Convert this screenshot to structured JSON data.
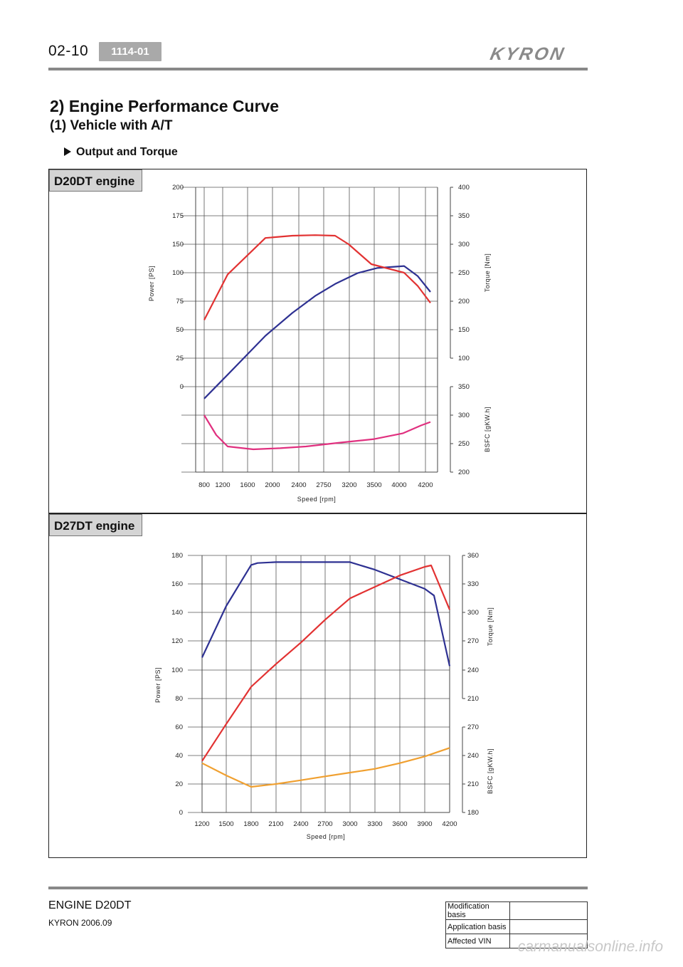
{
  "header": {
    "page_number": "02-10",
    "section_code": "1114-01",
    "brand_logo": "KYRON"
  },
  "title": "2) Engine Performance Curve",
  "subtitle": "(1) Vehicle with A/T",
  "bullet": "Output and Torque",
  "colors": {
    "power": "#2e3192",
    "torque": "#e23232",
    "bsfc_d20": "#e0307f",
    "bsfc_d27": "#f0a030"
  },
  "chart_data": [
    {
      "type": "line",
      "panel_label": "D20DT engine",
      "xlabel": "Speed [rpm]",
      "x_ticks": [
        "800",
        "1200",
        "1600",
        "2000",
        "2400",
        "2750",
        "3200",
        "3500",
        "4000",
        "4200"
      ],
      "left_axis": {
        "label": "Power [PS]",
        "ticks": [
          "200",
          "175",
          "150",
          "100",
          "75",
          "50",
          "25",
          "0"
        ]
      },
      "right_upper_axis": {
        "label": "Torque [Nm]",
        "ticks": [
          "400",
          "350",
          "300",
          "250",
          "200",
          "150",
          "100"
        ]
      },
      "right_lower_axis": {
        "label": "BSFC [gKW.h]",
        "ticks": [
          "350",
          "300",
          "250",
          "200"
        ]
      },
      "grid": true,
      "series": [
        {
          "name": "",
          "axis": "power",
          "color_key": "power",
          "x": [
            800,
            1200,
            1600,
            2000,
            2400,
            2750,
            3200,
            3500,
            4000,
            4200,
            4300
          ],
          "y": [
            -12,
            12,
            51,
            74,
            91,
            103,
            114,
            119,
            121,
            111,
            95
          ]
        },
        {
          "name": "",
          "axis": "torque",
          "color_key": "torque",
          "x": [
            800,
            1200,
            1600,
            2000,
            2400,
            2750,
            3200,
            3500,
            4000,
            4200,
            4300
          ],
          "y": [
            167,
            247,
            311,
            315,
            316,
            315,
            300,
            265,
            250,
            227,
            197
          ]
        },
        {
          "name": "",
          "axis": "bsfc",
          "color_key": "bsfc_d20",
          "x": [
            800,
            1200,
            1600,
            2000,
            2400,
            2750,
            3200,
            3500,
            4000,
            4200,
            4300
          ],
          "y": [
            300,
            265,
            245,
            240,
            242,
            245,
            252,
            258,
            268,
            282,
            288
          ]
        }
      ]
    },
    {
      "type": "line",
      "panel_label": "D27DT engine",
      "xlabel": "Speed [rpm]",
      "x_ticks": [
        "1200",
        "1500",
        "1800",
        "2100",
        "2400",
        "2700",
        "3000",
        "3300",
        "3600",
        "3900",
        "4200"
      ],
      "left_axis": {
        "label": "Power [PS]",
        "ticks": [
          "180",
          "160",
          "140",
          "120",
          "100",
          "80",
          "60",
          "40",
          "20",
          "0"
        ]
      },
      "right_upper_axis": {
        "label": "Torque [Nm]",
        "ticks": [
          "360",
          "330",
          "300",
          "270",
          "240",
          "210"
        ]
      },
      "right_lower_axis": {
        "label": "BSFC [gKW.h]",
        "ticks": [
          "270",
          "240",
          "210",
          "180"
        ]
      },
      "grid": true,
      "series": [
        {
          "name": "",
          "axis": "torque",
          "color_key": "power",
          "x": [
            1200,
            1500,
            1800,
            1900,
            2100,
            2400,
            2700,
            3000,
            3300,
            3600,
            3900,
            4000,
            4200
          ],
          "y": [
            253,
            307,
            350,
            352,
            353,
            353,
            353,
            353,
            345,
            335,
            325,
            318,
            244
          ]
        },
        {
          "name": "",
          "axis": "power",
          "color_key": "torque",
          "x": [
            1200,
            1500,
            1800,
            2100,
            2400,
            2700,
            3000,
            3300,
            3600,
            3900,
            4050,
            4200
          ],
          "y": [
            36,
            62,
            88,
            104,
            119,
            135,
            150,
            158,
            166,
            172,
            173,
            142
          ]
        },
        {
          "name": "",
          "axis": "bsfc",
          "color_key": "bsfc_d27",
          "x": [
            1200,
            1500,
            1800,
            2100,
            2400,
            2700,
            3000,
            3300,
            3600,
            3900,
            4200
          ],
          "y": [
            232,
            219,
            207,
            210,
            214,
            218,
            222,
            226,
            232,
            239,
            248
          ]
        }
      ]
    }
  ],
  "footer": {
    "title": "ENGINE D20DT",
    "subtitle": "KYRON 2006.09",
    "table": [
      {
        "label": "Modification basis",
        "value": ""
      },
      {
        "label": "Application basis",
        "value": ""
      },
      {
        "label": "Affected VIN",
        "value": ""
      }
    ]
  },
  "watermark": "carmanualsonline.info"
}
